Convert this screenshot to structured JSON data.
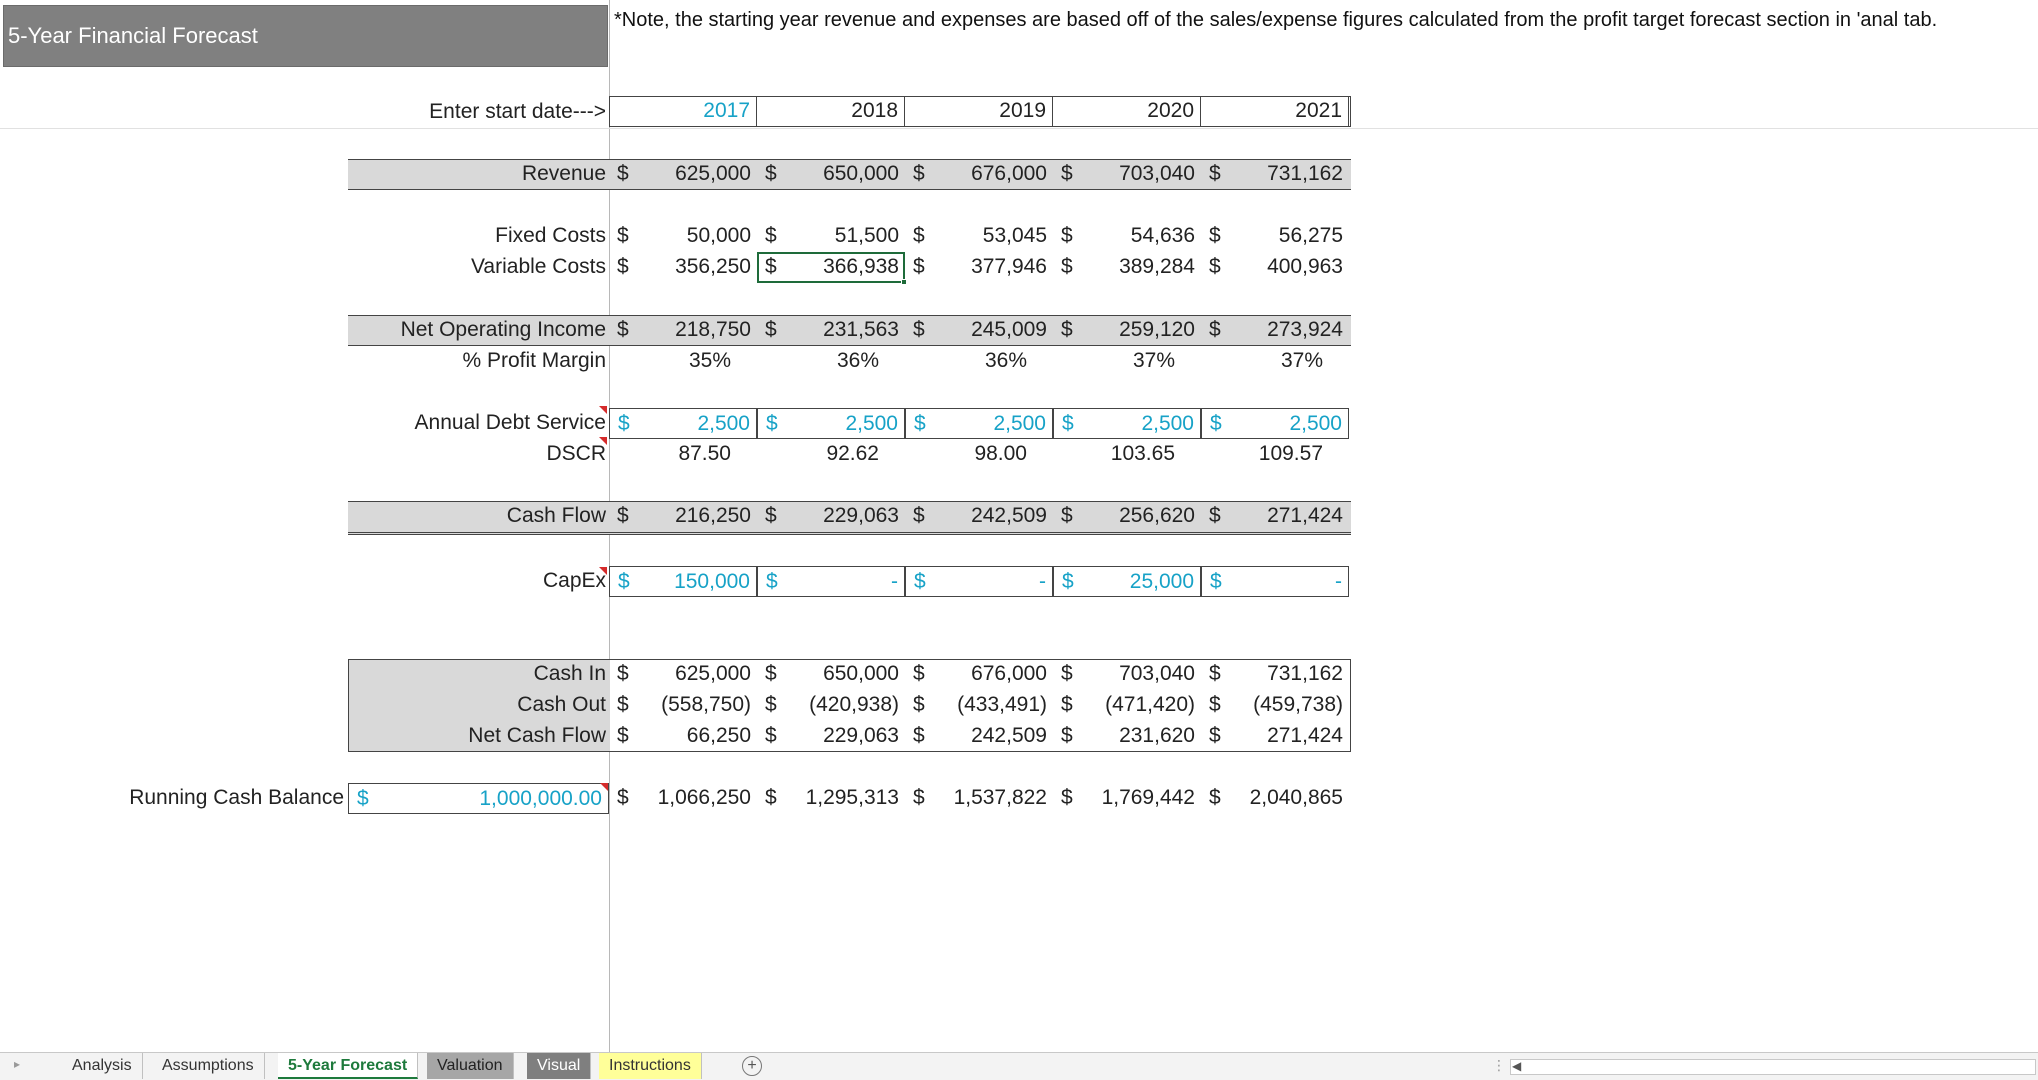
{
  "sheet_title": "5-Year Financial Forecast",
  "note": "*Note, the starting year revenue and expenses are based off of the sales/expense figures calculated from the profit target forecast section in 'anal tab.",
  "start_date_label": "Enter start date--->",
  "years": [
    "2017",
    "2018",
    "2019",
    "2020",
    "2021"
  ],
  "currency_symbol": "$",
  "rows": {
    "revenue": {
      "label": "Revenue",
      "values": [
        "625,000",
        "650,000",
        "676,000",
        "703,040",
        "731,162"
      ]
    },
    "fixed_costs": {
      "label": "Fixed Costs",
      "values": [
        "50,000",
        "51,500",
        "53,045",
        "54,636",
        "56,275"
      ]
    },
    "variable_costs": {
      "label": "Variable Costs",
      "values": [
        "356,250",
        "366,938",
        "377,946",
        "389,284",
        "400,963"
      ]
    },
    "net_operating_income": {
      "label": "Net Operating Income",
      "values": [
        "218,750",
        "231,563",
        "245,009",
        "259,120",
        "273,924"
      ]
    },
    "profit_margin": {
      "label": "% Profit Margin",
      "values": [
        "35%",
        "36%",
        "36%",
        "37%",
        "37%"
      ]
    },
    "annual_debt_service": {
      "label": "Annual Debt Service",
      "values": [
        "2,500",
        "2,500",
        "2,500",
        "2,500",
        "2,500"
      ]
    },
    "dscr": {
      "label": "DSCR",
      "values": [
        "87.50",
        "92.62",
        "98.00",
        "103.65",
        "109.57"
      ]
    },
    "cash_flow": {
      "label": "Cash Flow",
      "values": [
        "216,250",
        "229,063",
        "242,509",
        "256,620",
        "271,424"
      ]
    },
    "capex": {
      "label": "CapEx",
      "values": [
        "150,000",
        "-",
        "-",
        "25,000",
        "-"
      ]
    },
    "cash_in": {
      "label": "Cash In",
      "values": [
        "625,000",
        "650,000",
        "676,000",
        "703,040",
        "731,162"
      ]
    },
    "cash_out": {
      "label": "Cash Out",
      "values": [
        "(558,750)",
        "(420,938)",
        "(433,491)",
        "(471,420)",
        "(459,738)"
      ]
    },
    "net_cash_flow": {
      "label": "Net Cash Flow",
      "values": [
        "66,250",
        "229,063",
        "242,509",
        "231,620",
        "271,424"
      ]
    }
  },
  "running_cash_balance": {
    "label": "Running Cash Balance",
    "starting_value": "1,000,000.00",
    "values": [
      "1,066,250",
      "1,295,313",
      "1,537,822",
      "1,769,442",
      "2,040,865"
    ]
  },
  "tabs": [
    "Analysis",
    "Assumptions",
    "5-Year Forecast",
    "Valuation",
    "Visual",
    "Instructions"
  ],
  "active_tab": "5-Year Forecast",
  "colors": {
    "input_blue": "#17a2c7",
    "active_tab_green": "#1e7a3c",
    "band_gray": "#d9d9d9",
    "title_gray": "#808080",
    "instructions_tab": "#ffff99"
  }
}
